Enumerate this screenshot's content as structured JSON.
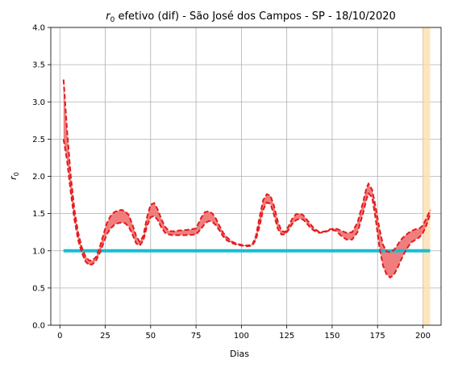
{
  "chart_data": {
    "type": "line",
    "title_prefix": "r",
    "title_subscript": "0",
    "title_rest": " efetivo (dif) - São José dos Campos - SP - 18/10/2020",
    "xlabel": "Dias",
    "ylabel_main": "r",
    "ylabel_sub": "0",
    "xlim": [
      -5,
      210
    ],
    "ylim": [
      0,
      4
    ],
    "xticks": [
      0,
      25,
      50,
      75,
      100,
      125,
      150,
      175,
      200
    ],
    "yticks": [
      0.0,
      0.5,
      1.0,
      1.5,
      2.0,
      2.5,
      3.0,
      3.5,
      4.0
    ],
    "ytick_labels": [
      "0.0",
      "0.5",
      "1.0",
      "1.5",
      "2.0",
      "2.5",
      "3.0",
      "3.5",
      "4.0"
    ],
    "grid": true,
    "colors": {
      "band": "#f07070",
      "bound_line": "#e31a1c",
      "reference_line": "#17becf",
      "shaded_region": "#ffdead"
    },
    "reference_line": {
      "y": 1.0,
      "x_start": 2,
      "x_end": 204
    },
    "shaded_region": {
      "x_start": 200,
      "x_end": 204
    },
    "upper": [
      [
        2,
        3.3
      ],
      [
        4,
        2.6
      ],
      [
        6,
        2.0
      ],
      [
        8,
        1.55
      ],
      [
        10,
        1.25
      ],
      [
        12,
        1.05
      ],
      [
        14,
        0.93
      ],
      [
        16,
        0.87
      ],
      [
        18,
        0.87
      ],
      [
        20,
        0.92
      ],
      [
        22,
        1.05
      ],
      [
        24,
        1.22
      ],
      [
        26,
        1.38
      ],
      [
        28,
        1.47
      ],
      [
        30,
        1.52
      ],
      [
        32,
        1.54
      ],
      [
        34,
        1.55
      ],
      [
        36,
        1.53
      ],
      [
        38,
        1.48
      ],
      [
        40,
        1.35
      ],
      [
        42,
        1.2
      ],
      [
        44,
        1.12
      ],
      [
        46,
        1.2
      ],
      [
        48,
        1.45
      ],
      [
        50,
        1.62
      ],
      [
        52,
        1.64
      ],
      [
        54,
        1.55
      ],
      [
        56,
        1.42
      ],
      [
        58,
        1.32
      ],
      [
        60,
        1.27
      ],
      [
        62,
        1.26
      ],
      [
        65,
        1.27
      ],
      [
        70,
        1.28
      ],
      [
        75,
        1.3
      ],
      [
        78,
        1.45
      ],
      [
        80,
        1.52
      ],
      [
        82,
        1.53
      ],
      [
        84,
        1.5
      ],
      [
        86,
        1.43
      ],
      [
        88,
        1.33
      ],
      [
        90,
        1.24
      ],
      [
        92,
        1.18
      ],
      [
        95,
        1.12
      ],
      [
        98,
        1.09
      ],
      [
        100,
        1.08
      ],
      [
        103,
        1.07
      ],
      [
        106,
        1.08
      ],
      [
        108,
        1.2
      ],
      [
        110,
        1.45
      ],
      [
        112,
        1.68
      ],
      [
        114,
        1.76
      ],
      [
        116,
        1.74
      ],
      [
        118,
        1.6
      ],
      [
        120,
        1.4
      ],
      [
        122,
        1.27
      ],
      [
        124,
        1.25
      ],
      [
        126,
        1.33
      ],
      [
        128,
        1.43
      ],
      [
        130,
        1.49
      ],
      [
        132,
        1.5
      ],
      [
        134,
        1.48
      ],
      [
        136,
        1.42
      ],
      [
        138,
        1.36
      ],
      [
        140,
        1.3
      ],
      [
        143,
        1.25
      ],
      [
        146,
        1.26
      ],
      [
        149,
        1.29
      ],
      [
        152,
        1.3
      ],
      [
        155,
        1.27
      ],
      [
        158,
        1.24
      ],
      [
        161,
        1.25
      ],
      [
        164,
        1.38
      ],
      [
        167,
        1.65
      ],
      [
        169,
        1.85
      ],
      [
        170,
        1.9
      ],
      [
        172,
        1.82
      ],
      [
        174,
        1.58
      ],
      [
        176,
        1.3
      ],
      [
        178,
        1.08
      ],
      [
        180,
        0.99
      ],
      [
        182,
        0.98
      ],
      [
        184,
        1.01
      ],
      [
        186,
        1.08
      ],
      [
        188,
        1.15
      ],
      [
        190,
        1.2
      ],
      [
        192,
        1.24
      ],
      [
        194,
        1.27
      ],
      [
        196,
        1.29
      ],
      [
        198,
        1.3
      ],
      [
        200,
        1.34
      ],
      [
        202,
        1.44
      ],
      [
        204,
        1.55
      ]
    ],
    "lower": [
      [
        2,
        2.5
      ],
      [
        4,
        2.2
      ],
      [
        6,
        1.78
      ],
      [
        8,
        1.42
      ],
      [
        10,
        1.15
      ],
      [
        12,
        0.98
      ],
      [
        14,
        0.86
      ],
      [
        16,
        0.81
      ],
      [
        18,
        0.82
      ],
      [
        20,
        0.87
      ],
      [
        22,
        0.97
      ],
      [
        24,
        1.1
      ],
      [
        26,
        1.23
      ],
      [
        28,
        1.3
      ],
      [
        30,
        1.35
      ],
      [
        32,
        1.37
      ],
      [
        34,
        1.38
      ],
      [
        36,
        1.37
      ],
      [
        38,
        1.32
      ],
      [
        40,
        1.22
      ],
      [
        42,
        1.1
      ],
      [
        44,
        1.07
      ],
      [
        46,
        1.14
      ],
      [
        48,
        1.33
      ],
      [
        50,
        1.45
      ],
      [
        52,
        1.47
      ],
      [
        54,
        1.41
      ],
      [
        56,
        1.31
      ],
      [
        58,
        1.24
      ],
      [
        60,
        1.22
      ],
      [
        62,
        1.21
      ],
      [
        65,
        1.21
      ],
      [
        70,
        1.21
      ],
      [
        75,
        1.22
      ],
      [
        78,
        1.3
      ],
      [
        80,
        1.37
      ],
      [
        82,
        1.4
      ],
      [
        84,
        1.39
      ],
      [
        86,
        1.34
      ],
      [
        88,
        1.27
      ],
      [
        90,
        1.19
      ],
      [
        92,
        1.14
      ],
      [
        95,
        1.1
      ],
      [
        98,
        1.08
      ],
      [
        100,
        1.07
      ],
      [
        103,
        1.06
      ],
      [
        106,
        1.07
      ],
      [
        108,
        1.15
      ],
      [
        110,
        1.33
      ],
      [
        112,
        1.55
      ],
      [
        114,
        1.65
      ],
      [
        116,
        1.63
      ],
      [
        118,
        1.48
      ],
      [
        120,
        1.3
      ],
      [
        122,
        1.22
      ],
      [
        124,
        1.22
      ],
      [
        126,
        1.28
      ],
      [
        128,
        1.36
      ],
      [
        130,
        1.41
      ],
      [
        132,
        1.43
      ],
      [
        134,
        1.42
      ],
      [
        136,
        1.37
      ],
      [
        138,
        1.31
      ],
      [
        140,
        1.27
      ],
      [
        143,
        1.24
      ],
      [
        146,
        1.25
      ],
      [
        149,
        1.28
      ],
      [
        152,
        1.27
      ],
      [
        155,
        1.2
      ],
      [
        158,
        1.15
      ],
      [
        161,
        1.15
      ],
      [
        164,
        1.25
      ],
      [
        167,
        1.5
      ],
      [
        169,
        1.7
      ],
      [
        170,
        1.77
      ],
      [
        172,
        1.72
      ],
      [
        174,
        1.42
      ],
      [
        176,
        1.05
      ],
      [
        178,
        0.8
      ],
      [
        180,
        0.68
      ],
      [
        182,
        0.64
      ],
      [
        184,
        0.68
      ],
      [
        186,
        0.77
      ],
      [
        188,
        0.88
      ],
      [
        190,
        0.98
      ],
      [
        192,
        1.06
      ],
      [
        194,
        1.12
      ],
      [
        196,
        1.15
      ],
      [
        198,
        1.18
      ],
      [
        200,
        1.24
      ],
      [
        202,
        1.35
      ],
      [
        204,
        1.49
      ]
    ]
  }
}
